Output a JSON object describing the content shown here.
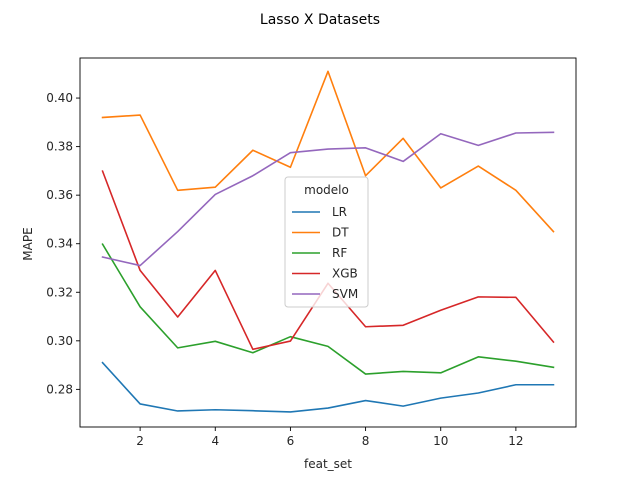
{
  "chart_data": {
    "type": "line",
    "title": "Lasso X Datasets",
    "xlabel": "feat_set",
    "ylabel": "MAPE",
    "xlim": [
      0.4,
      13.6
    ],
    "ylim": [
      0.2645,
      0.4165
    ],
    "x_ticks": [
      2,
      4,
      6,
      8,
      10,
      12
    ],
    "y_ticks": [
      0.28,
      0.3,
      0.32,
      0.34,
      0.36,
      0.38,
      0.4
    ],
    "y_tick_labels": [
      "0.28",
      "0.30",
      "0.32",
      "0.34",
      "0.36",
      "0.38",
      "0.40"
    ],
    "grid": false,
    "legend": {
      "title": "modelo",
      "placement": "center"
    },
    "x": [
      1,
      2,
      3,
      4,
      5,
      6,
      7,
      8,
      9,
      10,
      11,
      12,
      13
    ],
    "series": [
      {
        "name": "LR",
        "color": "#1f77b4",
        "values": [
          0.291,
          0.274,
          0.2711,
          0.2716,
          0.2712,
          0.2707,
          0.2723,
          0.2754,
          0.2731,
          0.2764,
          0.2785,
          0.2819,
          0.2819
        ]
      },
      {
        "name": "DT",
        "color": "#ff7f0e",
        "values": [
          0.392,
          0.393,
          0.362,
          0.3633,
          0.3785,
          0.3715,
          0.411,
          0.368,
          0.3834,
          0.363,
          0.372,
          0.362,
          0.345
        ]
      },
      {
        "name": "RF",
        "color": "#2ca02c",
        "values": [
          0.3398,
          0.314,
          0.2971,
          0.2998,
          0.2951,
          0.3017,
          0.2977,
          0.2863,
          0.2874,
          0.2868,
          0.2934,
          0.2916,
          0.2891
        ]
      },
      {
        "name": "XGB",
        "color": "#d62728",
        "values": [
          0.3699,
          0.329,
          0.3098,
          0.329,
          0.2965,
          0.2999,
          0.3237,
          0.3058,
          0.3064,
          0.3126,
          0.3181,
          0.3179,
          0.2995
        ]
      },
      {
        "name": "SVM",
        "color": "#9467bd",
        "values": [
          0.3345,
          0.331,
          0.345,
          0.3603,
          0.368,
          0.3775,
          0.379,
          0.3795,
          0.3739,
          0.3853,
          0.3805,
          0.3856,
          0.3859
        ]
      }
    ]
  }
}
